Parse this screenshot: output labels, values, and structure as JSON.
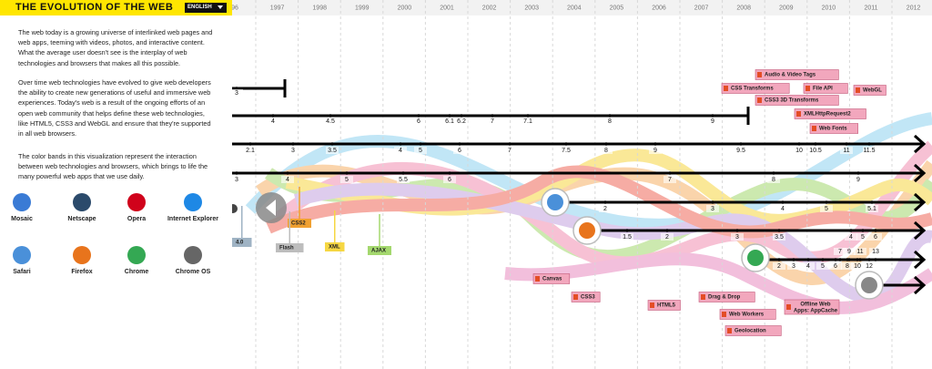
{
  "header": {
    "title": "THE EVOLUTION OF THE WEB",
    "language": "ENGLISH"
  },
  "intro": [
    "The web today is a growing universe of interlinked web pages and web apps, teeming with videos, photos, and interactive content. What the average user doesn't see is the interplay of web technologies and browsers that makes all this possible.",
    "Over time web technologies have evolved to give web developers the ability to create new generations of useful and immersive web experiences. Today's web is a result of the ongoing efforts of an open web community that helps define these web technologies, like HTML5, CSS3 and WebGL and ensure that they're supported in all web browsers.",
    "The color bands in this visualization represent the interaction between web technologies and browsers, which brings to life the many powerful web apps that we use daily."
  ],
  "browsers": [
    "Mosaic",
    "Netscape",
    "Opera",
    "Internet Explorer",
    "Safari",
    "Firefox",
    "Chrome",
    "Chrome OS"
  ],
  "years": [
    "96",
    "1997",
    "1998",
    "1999",
    "2000",
    "2001",
    "2002",
    "2003",
    "2004",
    "2005",
    "2006",
    "2007",
    "2008",
    "2009",
    "2010",
    "2011",
    "2012"
  ],
  "timelines": [
    [
      "3"
    ],
    [
      "4",
      "4.5",
      "6",
      "6.1",
      "6.2",
      "7",
      "7.1",
      "8",
      "9"
    ],
    [
      "2.1",
      "3",
      "3.5",
      "4",
      "5",
      "6",
      "7",
      "7.5",
      "8",
      "9",
      "9.5",
      "10",
      "10.5",
      "11",
      "11.5"
    ],
    [
      "3",
      "4",
      "5",
      "5.5",
      "6",
      "7",
      "8",
      "9"
    ],
    [
      "2",
      "3",
      "4",
      "5",
      "5.1"
    ],
    [
      "1.5",
      "2",
      "3",
      "3.5",
      "4",
      "5",
      "6"
    ],
    [
      "7",
      "9",
      "11",
      "13",
      "2",
      "3",
      "4",
      "5",
      "6",
      "8",
      "10",
      "12"
    ],
    []
  ],
  "tags": [
    "Audio & Video Tags",
    "CSS Transforms",
    "CSS3 3D Transforms",
    "File API",
    "WebGL",
    "XMLHttpRequest2",
    "Web Fonts",
    "Canvas",
    "CSS3",
    "HTML5",
    "Drag & Drop",
    "Web Workers",
    "Geolocation",
    "Offline Web Apps: AppCache"
  ],
  "legacy_tags": [
    "4.0",
    "CSS2",
    "Flash",
    "XML",
    "AJAX"
  ]
}
